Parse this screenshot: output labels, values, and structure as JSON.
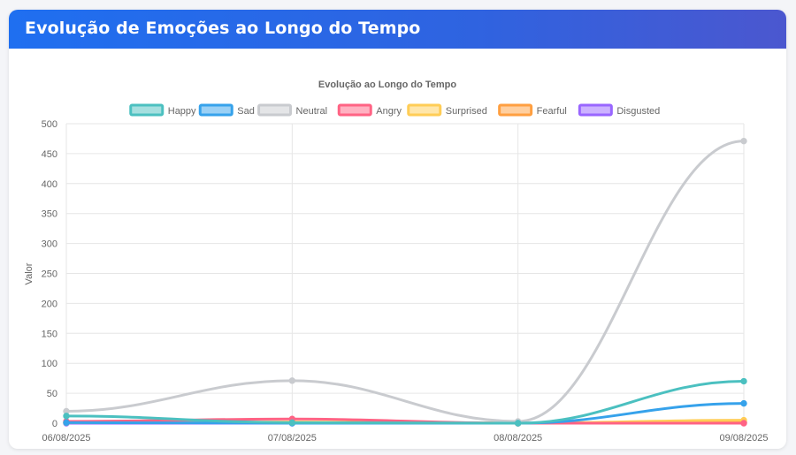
{
  "header": {
    "title": "Evolução de Emoções ao Longo do Tempo"
  },
  "chart_data": {
    "type": "line",
    "title": "Evolução ao Longo do Tempo",
    "xlabel": "",
    "ylabel": "Valor",
    "ylim": [
      0,
      500
    ],
    "yticks": [
      "500",
      "450",
      "400",
      "350",
      "300",
      "250",
      "200",
      "150",
      "100",
      "50",
      "0"
    ],
    "categories": [
      "06/08/2025",
      "07/08/2025",
      "08/08/2025",
      "09/08/2025"
    ],
    "legend_position": "top",
    "grid": true,
    "series": [
      {
        "name": "Happy",
        "color": "#4bc0c0",
        "values": [
          12,
          1,
          0,
          70
        ]
      },
      {
        "name": "Sad",
        "color": "#36a2eb",
        "values": [
          1,
          0,
          0,
          33
        ]
      },
      {
        "name": "Neutral",
        "color": "#c9cbcf",
        "values": [
          20,
          71,
          3,
          471
        ]
      },
      {
        "name": "Angry",
        "color": "#ff6384",
        "values": [
          3,
          7,
          0,
          0
        ]
      },
      {
        "name": "Surprised",
        "color": "#ffcd56",
        "values": [
          1,
          2,
          0,
          5
        ]
      },
      {
        "name": "Fearful",
        "color": "#ff9f40",
        "values": [
          1,
          1,
          0,
          2
        ]
      },
      {
        "name": "Disgusted",
        "color": "#9966ff",
        "values": [
          0,
          0,
          0,
          1
        ]
      }
    ]
  }
}
